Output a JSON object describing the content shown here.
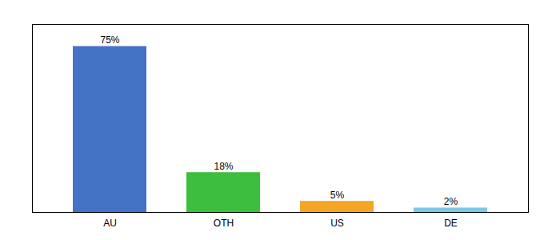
{
  "chart_data": {
    "type": "bar",
    "categories": [
      "AU",
      "OTH",
      "US",
      "DE"
    ],
    "values": [
      75,
      18,
      5,
      2
    ],
    "value_labels": [
      "75%",
      "18%",
      "5%",
      "2%"
    ],
    "colors": [
      "#4472c4",
      "#3dbf3d",
      "#f5a623",
      "#7ec8e3"
    ],
    "ylim": [
      0,
      85
    ],
    "data_labels": true,
    "tick_labels": "x",
    "grid": false
  }
}
